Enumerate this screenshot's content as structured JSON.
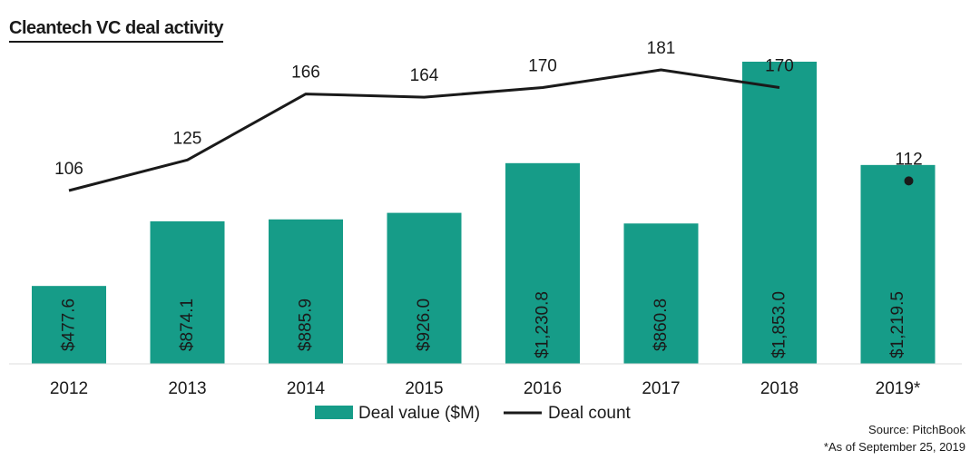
{
  "chart_data": {
    "type": "bar+line",
    "title": "Cleantech VC deal activity",
    "categories": [
      "2012",
      "2013",
      "2014",
      "2015",
      "2016",
      "2017",
      "2018",
      "2019*"
    ],
    "bar_series": {
      "name": "Deal value ($M)",
      "values": [
        477.6,
        874.1,
        885.9,
        926.0,
        1230.8,
        860.8,
        1853.0,
        1219.5
      ],
      "labels": [
        "$477.6",
        "$874.1",
        "$885.9",
        "$926.0",
        "$1,230.8",
        "$860.8",
        "$1,853.0",
        "$1,219.5"
      ],
      "color": "#169c88"
    },
    "line_series": {
      "name": "Deal count",
      "values": [
        106,
        125,
        166,
        164,
        170,
        181,
        170,
        112
      ],
      "labels": [
        "106",
        "125",
        "166",
        "164",
        "170",
        "181",
        "170",
        "112"
      ],
      "color": "#1a1a1a",
      "note": "2019* shown as a standalone point"
    },
    "legend_position": "bottom-center",
    "grid": false
  },
  "source": "Source: PitchBook",
  "footnote": "*As of September 25, 2019"
}
